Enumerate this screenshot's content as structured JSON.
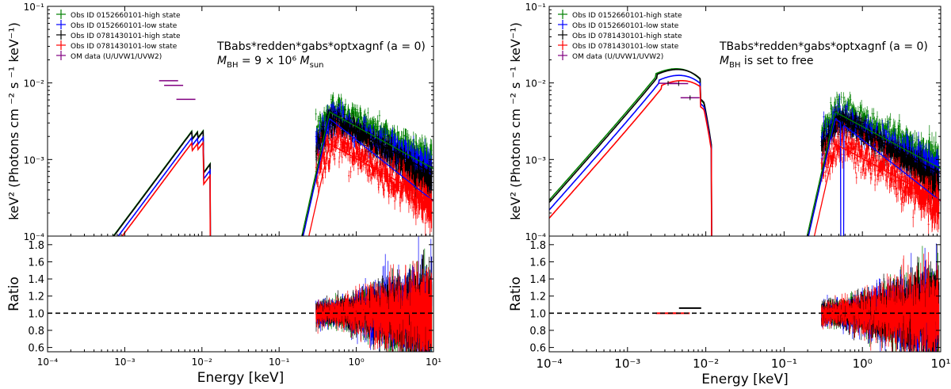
{
  "chart_data": [
    {
      "type": "line",
      "xlabel": "Energy [keV]",
      "ylabel_top": "keV² (Photons cm ⁻² s ⁻¹ keV⁻¹)",
      "ylabel_bottom": "Ratio",
      "x_scale": "log",
      "xlim": [
        0.0001,
        10
      ],
      "ylim_top": [
        0.0001,
        0.1
      ],
      "ylim_bottom": [
        0.55,
        1.9
      ],
      "x_tick_labels": [
        "10⁻⁴",
        "10⁻³",
        "10⁻²",
        "10⁻¹",
        "10⁰",
        "10¹"
      ],
      "y_tick_labels_top": [
        "10⁻⁴",
        "10⁻³",
        "10⁻²",
        "10⁻¹"
      ],
      "y_tick_labels_bottom": [
        "0.6",
        "0.8",
        "1.0",
        "1.2",
        "1.4",
        "1.6",
        "1.8"
      ],
      "annotation_line1": "TBabs*redden*gabs*optxagnf (a = 0)",
      "annotation_line2": "M_BH = 9 × 10⁶ M_sun",
      "legend": [
        {
          "label": "Obs ID 0152660101-high state",
          "color": "#008000"
        },
        {
          "label": "Obs ID 0152660101-low state",
          "color": "#0000ff"
        },
        {
          "label": "Obs ID 0781430101-high state",
          "color": "#000000"
        },
        {
          "label": "Obs ID 0781430101-low state",
          "color": "#ff0000"
        },
        {
          "label": "OM data (U/UVW1/UVW2)",
          "color": "#800080"
        }
      ],
      "om_points": [
        {
          "x": 0.0037,
          "y": 0.0107
        },
        {
          "x": 0.0043,
          "y": 0.0093
        },
        {
          "x": 0.0062,
          "y": 0.0061
        }
      ],
      "model_uv_peak": {
        "x": 0.0075,
        "y": 0.0024
      },
      "xray_peak": {
        "x": 0.5,
        "y": 0.004
      }
    },
    {
      "type": "line",
      "xlabel": "Energy [keV]",
      "ylabel_top": "keV² (Photons cm ⁻² s ⁻¹ keV⁻¹)",
      "ylabel_bottom": "Ratio",
      "x_scale": "log",
      "xlim": [
        0.0001,
        10
      ],
      "ylim_top": [
        0.0001,
        0.1
      ],
      "ylim_bottom": [
        0.55,
        1.9
      ],
      "x_tick_labels": [
        "10⁻⁴",
        "10⁻³",
        "10⁻²",
        "10⁻¹",
        "10⁰",
        "10¹"
      ],
      "y_tick_labels_top": [
        "10⁻⁴",
        "10⁻³",
        "10⁻²",
        "10⁻¹"
      ],
      "y_tick_labels_bottom": [
        "0.6",
        "0.8",
        "1.0",
        "1.2",
        "1.4",
        "1.6",
        "1.8"
      ],
      "annotation_line1": "TBabs*redden*gabs*optxagnf (a = 0)",
      "annotation_line2": "M_BH is set to free",
      "legend": [
        {
          "label": "Obs ID 0152660101-high state",
          "color": "#008000"
        },
        {
          "label": "Obs ID 0152660101-low state",
          "color": "#0000ff"
        },
        {
          "label": "Obs ID 0781430101-high state",
          "color": "#000000"
        },
        {
          "label": "Obs ID 0781430101-low state",
          "color": "#ff0000"
        },
        {
          "label": "OM data (U/UVW1/UVW2)",
          "color": "#800080"
        }
      ],
      "om_points": [
        {
          "x": 0.0033,
          "y": 0.0099
        },
        {
          "x": 0.0045,
          "y": 0.0098
        },
        {
          "x": 0.0063,
          "y": 0.0064
        }
      ],
      "model_uv_peak": {
        "x": 0.0025,
        "y": 0.012
      },
      "xray_peak": {
        "x": 0.5,
        "y": 0.004
      }
    }
  ]
}
